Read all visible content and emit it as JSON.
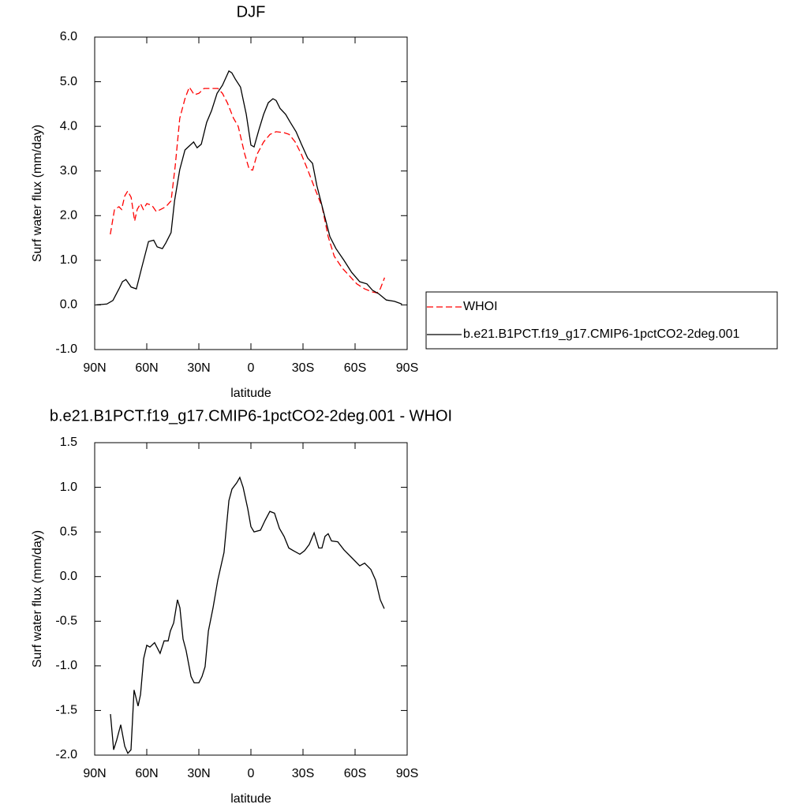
{
  "chart_data": [
    {
      "type": "line",
      "title": "DJF",
      "xlabel": "latitude",
      "ylabel": "Surf water flux (mm/day)",
      "xlim": [
        90,
        -90
      ],
      "xticks": [
        {
          "value": 90,
          "label": "90N"
        },
        {
          "value": 60,
          "label": "60N"
        },
        {
          "value": 30,
          "label": "30N"
        },
        0,
        {
          "value": -30,
          "label": "30S"
        },
        {
          "value": -60,
          "label": "60S"
        },
        {
          "value": -90,
          "label": "90S"
        }
      ],
      "ylim": [
        -1,
        6
      ],
      "yticks": [
        {
          "value": -1,
          "label": "-1.0"
        },
        {
          "value": 0,
          "label": "0.0"
        },
        {
          "value": 1,
          "label": "1.0"
        },
        {
          "value": 2,
          "label": "2.0"
        },
        {
          "value": 3,
          "label": "3.0"
        },
        {
          "value": 4,
          "label": "4.0"
        },
        {
          "value": 5,
          "label": "5.0"
        },
        {
          "value": 6,
          "label": "6.0"
        }
      ],
      "legend": "right",
      "series": [
        {
          "name": "WHOI",
          "color": "#ff0000",
          "linestyle": "dashed",
          "x": [
            81,
            78.6,
            76,
            74.5,
            72.7,
            71,
            69,
            67,
            65.5,
            63.6,
            62,
            60,
            57,
            54.5,
            52,
            49,
            46,
            43.6,
            41,
            38,
            35.5,
            32.7,
            30,
            27,
            24.5,
            21.8,
            19,
            16.4,
            13.6,
            10,
            7.3,
            3.6,
            1,
            -1,
            -3.6,
            -7.3,
            -11,
            -14.5,
            -19,
            -22,
            -25.5,
            -29,
            -32.7,
            -37,
            -41,
            -44.5,
            -48,
            -52.7,
            -57,
            -61,
            -65.5,
            -70,
            -72.7,
            -74.5,
            -77
          ],
          "values": [
            1.58,
            2.14,
            2.2,
            2.14,
            2.44,
            2.55,
            2.41,
            1.88,
            2.14,
            2.27,
            2.14,
            2.27,
            2.23,
            2.09,
            2.14,
            2.2,
            2.33,
            3.12,
            4.18,
            4.62,
            4.88,
            4.71,
            4.74,
            4.85,
            4.85,
            4.85,
            4.85,
            4.74,
            4.53,
            4.18,
            4.0,
            3.38,
            3.04,
            3.02,
            3.38,
            3.65,
            3.82,
            3.88,
            3.86,
            3.82,
            3.65,
            3.38,
            3.03,
            2.59,
            2.2,
            1.53,
            1.09,
            0.82,
            0.64,
            0.47,
            0.36,
            0.29,
            0.27,
            0.36,
            0.61
          ]
        },
        {
          "name": "b.e21.B1PCT.f19_g17.CMIP6-1pctCO2-2deg.001",
          "color": "#000000",
          "linestyle": "solid",
          "x": [
            89,
            83,
            79.5,
            76,
            74,
            72,
            69,
            66,
            63,
            59,
            56,
            54,
            51,
            49,
            46,
            44,
            41,
            38,
            35.5,
            33,
            31,
            28.6,
            25.5,
            22.7,
            19.5,
            16.4,
            12.7,
            11,
            9,
            6,
            2.7,
            0,
            -1.8,
            -4.5,
            -7.3,
            -10,
            -12.7,
            -14.5,
            -16.8,
            -20,
            -22.7,
            -26,
            -29,
            -32.7,
            -35.5,
            -38,
            -42,
            -45.5,
            -49,
            -53.6,
            -58,
            -62.7,
            -66.8,
            -70,
            -73.6,
            -78,
            -82.7,
            -87
          ],
          "values": [
            0.0,
            0.02,
            0.1,
            0.36,
            0.52,
            0.57,
            0.4,
            0.36,
            0.82,
            1.42,
            1.45,
            1.3,
            1.26,
            1.39,
            1.62,
            2.33,
            3.03,
            3.47,
            3.56,
            3.65,
            3.52,
            3.6,
            4.09,
            4.35,
            4.74,
            4.92,
            5.24,
            5.2,
            5.06,
            4.88,
            4.27,
            3.58,
            3.54,
            3.91,
            4.27,
            4.53,
            4.62,
            4.58,
            4.4,
            4.27,
            4.09,
            3.88,
            3.61,
            3.29,
            3.17,
            2.67,
            2.06,
            1.53,
            1.26,
            1.0,
            0.73,
            0.52,
            0.47,
            0.33,
            0.25,
            0.11,
            0.08,
            0.02
          ]
        }
      ]
    },
    {
      "type": "line",
      "title": "b.e21.B1PCT.f19_g17.CMIP6-1pctCO2-2deg.001 - WHOI",
      "xlabel": "latitude",
      "ylabel": "Surf water flux (mm/day)",
      "xlim": [
        90,
        -90
      ],
      "xticks": [
        {
          "value": 90,
          "label": "90N"
        },
        {
          "value": 60,
          "label": "60N"
        },
        {
          "value": 30,
          "label": "30N"
        },
        0,
        {
          "value": -30,
          "label": "30S"
        },
        {
          "value": -60,
          "label": "60S"
        },
        {
          "value": -90,
          "label": "90S"
        }
      ],
      "ylim": [
        -2,
        1.5
      ],
      "yticks": [
        {
          "value": -2,
          "label": "-2.0"
        },
        -1.5,
        {
          "value": -1,
          "label": "-1.0"
        },
        -0.5,
        {
          "value": 0,
          "label": "0.0"
        },
        0.5,
        {
          "value": 1,
          "label": "1.0"
        },
        1.5
      ],
      "color": "#000000",
      "x": [
        80.9,
        79.1,
        77.3,
        75,
        72.7,
        70.9,
        69.1,
        67.3,
        65,
        63.6,
        61.8,
        60,
        58.2,
        55.5,
        52.3,
        50,
        47.7,
        46.4,
        44.5,
        42.3,
        40.9,
        39.1,
        37.3,
        34.5,
        32.7,
        30,
        28.2,
        26.4,
        24.5,
        21.8,
        19.1,
        15.5,
        12.7,
        10.9,
        8.2,
        6.4,
        4.5,
        1.8,
        0,
        -1.8,
        -5.5,
        -8.2,
        -10.9,
        -13.6,
        -16.4,
        -19.1,
        -21.8,
        -24.5,
        -28.2,
        -30.9,
        -33.6,
        -36.4,
        -39.1,
        -40.9,
        -42.7,
        -44.5,
        -46.4,
        -50,
        -53.6,
        -58.2,
        -62.7,
        -65.5,
        -69.1,
        -71.8,
        -74.5,
        -76.8
      ],
      "values": [
        -1.54,
        -1.94,
        -1.83,
        -1.66,
        -1.9,
        -1.98,
        -1.94,
        -1.27,
        -1.45,
        -1.32,
        -0.92,
        -0.77,
        -0.79,
        -0.74,
        -0.86,
        -0.72,
        -0.72,
        -0.61,
        -0.52,
        -0.26,
        -0.35,
        -0.7,
        -0.83,
        -1.12,
        -1.19,
        -1.19,
        -1.12,
        -1.01,
        -0.61,
        -0.35,
        -0.04,
        0.27,
        0.85,
        0.98,
        1.05,
        1.11,
        1.0,
        0.76,
        0.56,
        0.5,
        0.52,
        0.63,
        0.73,
        0.71,
        0.54,
        0.45,
        0.32,
        0.29,
        0.25,
        0.29,
        0.36,
        0.49,
        0.32,
        0.32,
        0.45,
        0.48,
        0.4,
        0.39,
        0.3,
        0.21,
        0.12,
        0.15,
        0.08,
        -0.04,
        -0.26,
        -0.36
      ]
    }
  ]
}
